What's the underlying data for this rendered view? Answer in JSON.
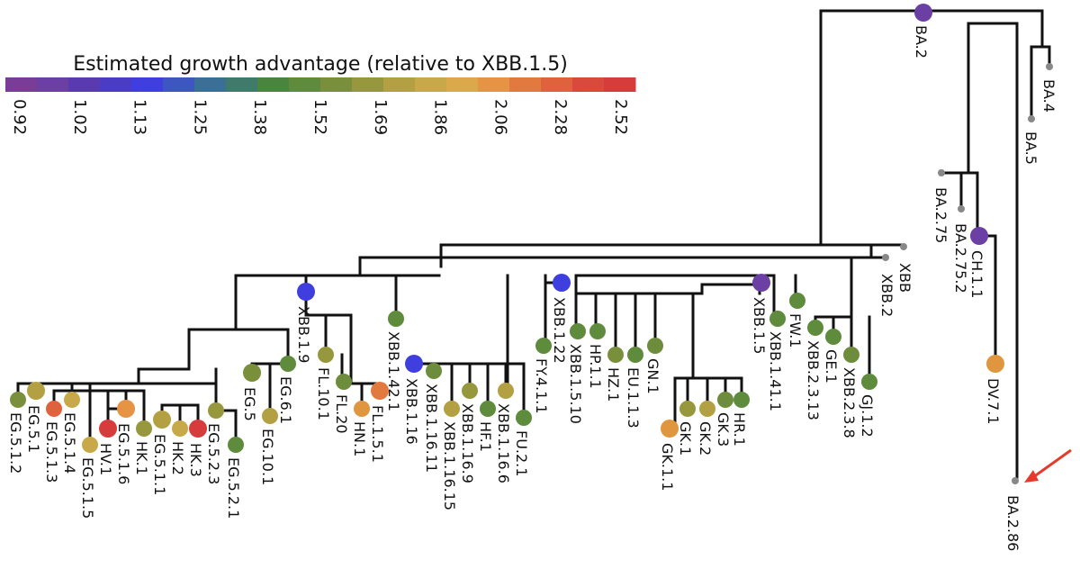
{
  "colorbar": {
    "title": "Estimated growth advantage (relative to XBB.1.5)",
    "ticks": [
      "0.92",
      "1.02",
      "1.13",
      "1.25",
      "1.38",
      "1.52",
      "1.69",
      "1.86",
      "2.06",
      "2.28",
      "2.52"
    ],
    "colors": [
      "#7a3d97",
      "#6b3fa3",
      "#5a3ab0",
      "#4b3cc6",
      "#3f3fe0",
      "#3d56c0",
      "#3c6f95",
      "#3f7a6a",
      "#4a8540",
      "#5e8b3c",
      "#7a8f3c",
      "#97973d",
      "#b3a043",
      "#c8a94a",
      "#dba84a",
      "#e69444",
      "#e2793e",
      "#e0623d",
      "#d94a3c",
      "#d63c3c"
    ]
  },
  "tree": {
    "labels": {
      "BA.2": "BA.2",
      "BA.4": "BA.4",
      "BA.5": "BA.5",
      "BA.2.75": "BA.2.75",
      "BA.2.75.2": "BA.2.75.2",
      "CH.1.1": "CH.1.1",
      "DV.7.1": "DV.7.1",
      "BA.2.86": "BA.2.86",
      "XBB": "XBB",
      "XBB.2": "XBB.2",
      "XBB.1.5": "XBB.1.5",
      "XBB.1.41.1": "XBB.1.41.1",
      "FW.1": "FW.1",
      "XBB.2.3.13": "XBB.2.3.13",
      "GE.1": "GE.1",
      "XBB.2.3.8": "XBB.2.3.8",
      "GJ.1.2": "GJ.1.2",
      "XBB.1.22": "XBB.1.22",
      "FY.4.1.1": "FY.4.1.1",
      "XBB.1.5.10": "XBB.1.5.10",
      "HP.1.1": "HP.1.1",
      "HZ.1": "HZ.1",
      "EU.1.1.3": "EU.1.1.3",
      "GN.1": "GN.1",
      "GK.1.1": "GK.1.1",
      "GK.1": "GK.1",
      "GK.2": "GK.2",
      "GK.3": "GK.3",
      "HR.1": "HR.1",
      "XBB.1.9": "XBB.1.9",
      "XBB.1.42.1": "XBB.1.42.1",
      "FL.10.1": "FL.10.1",
      "FL.20": "FL.20",
      "HN.1": "HN.1",
      "FL.1.5.1": "FL.1.5.1",
      "XBB.1.16": "XBB.1.16",
      "XBB.1.16.11": "XBB.1.16.11",
      "XBB.1.16.15": "XBB.1.16.15",
      "XBB.1.16.9": "XBB.1.16.9",
      "HF.1": "HF.1",
      "XBB.1.16.6": "XBB.1.16.6",
      "FU.2.1": "FU.2.1",
      "EG.5": "EG.5",
      "EG.6.1": "EG.6.1",
      "EG.10.1": "EG.10.1",
      "EG.5.2.1": "EG.5.2.1",
      "EG.5.2.3": "EG.5.2.3",
      "EG.5.1.2": "EG.5.1.2",
      "EG.5.1": "EG.5.1",
      "EG.5.1.3": "EG.5.1.3",
      "EG.5.1.4": "EG.5.1.4",
      "EG.5.1.5": "EG.5.1.5",
      "EG.5.1.6": "EG.5.1.6",
      "HV.1": "HV.1",
      "HK.1": "HK.1",
      "EG.5.1.1": "EG.5.1.1",
      "HK.2": "HK.2",
      "HK.3": "HK.3"
    },
    "node_colors": {
      "BA.2": "#6b3fa3",
      "CH.1.1": "#6b3fa3",
      "DV.7.1": "#e0963f",
      "XBB.1.5": "#6b3fa3",
      "XBB.1.9": "#3f3fe0",
      "XBB.1.22": "#3f3fe0",
      "XBB.1.16": "#3f3fe0",
      "XBB.1.41.1": "#5e8b3c",
      "FW.1": "#5e8b3c",
      "XBB.2.3.13": "#5e8b3c",
      "GE.1": "#5e8b3c",
      "XBB.2.3.8": "#6d8d3c",
      "GJ.1.2": "#5e8b3c",
      "FY.4.1.1": "#5e8b3c",
      "XBB.1.5.10": "#5e8b3c",
      "HP.1.1": "#5e8b3c",
      "HZ.1": "#7a8f3c",
      "EU.1.1.3": "#5e8b3c",
      "GN.1": "#6d8d3c",
      "GK.1.1": "#e0963f",
      "GK.1": "#97973d",
      "GK.2": "#b3a043",
      "GK.3": "#6d8d3c",
      "HR.1": "#5e8b3c",
      "XBB.1.42.1": "#5e8b3c",
      "FL.10.1": "#97973d",
      "FL.20": "#6d8d3c",
      "HN.1": "#e0963f",
      "FL.1.5.1": "#e2793e",
      "XBB.1.16.11": "#6d8d3c",
      "XBB.1.16.15": "#b3a043",
      "XBB.1.16.9": "#97973d",
      "HF.1": "#5e8b3c",
      "XBB.1.16.6": "#b3a043",
      "FU.2.1": "#5e8b3c",
      "EG.5": "#7a8f3c",
      "EG.6.1": "#5e8b3c",
      "EG.10.1": "#b3a043",
      "EG.5.2.1": "#5e8b3c",
      "EG.5.2.3": "#97973d",
      "EG.5.1.2": "#7a8f3c",
      "EG.5.1": "#b3a043",
      "EG.5.1.3": "#e0623d",
      "EG.5.1.4": "#c8a94a",
      "EG.5.1.5": "#c8a94a",
      "EG.5.1.6": "#e69444",
      "HV.1": "#d63c3c",
      "HK.1": "#97973d",
      "EG.5.1.1": "#b3a043",
      "HK.2": "#c8a94a",
      "HK.3": "#d63c3c",
      "BA.4": "#888888",
      "BA.5": "#888888",
      "BA.2.75": "#888888",
      "BA.2.75.2": "#888888",
      "BA.2.86": "#888888",
      "XBB": "#888888",
      "XBB.2": "#888888"
    },
    "arrow_color": "#e53b2c"
  }
}
